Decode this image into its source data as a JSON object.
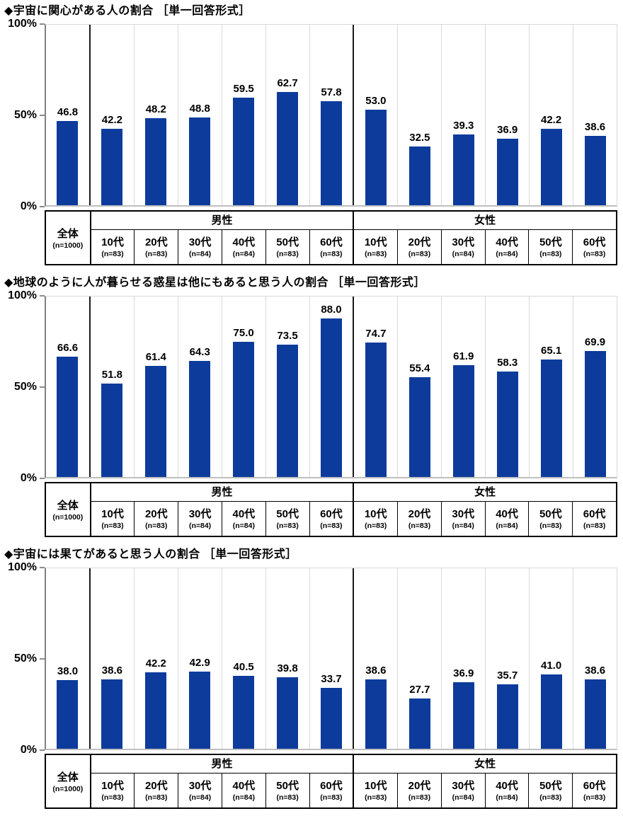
{
  "page": {
    "background": "#ffffff"
  },
  "chart_data": [
    {
      "type": "bar",
      "title": "◆宇宙に関心がある人の割合 ［単一回答形式］",
      "xlabel": "",
      "ylabel": "",
      "ylim": [
        0,
        100
      ],
      "grid": false,
      "legend": "none",
      "bar_color": "#0c3b9c",
      "yticks": [
        {
          "label": "100%",
          "value": 100
        },
        {
          "label": "50%",
          "value": 50
        },
        {
          "label": "0%",
          "value": 0
        }
      ],
      "group_headers": {
        "male": "男性",
        "female": "女性"
      },
      "categories": [
        {
          "label": "全体",
          "n": "(n=1000)",
          "group": "overall"
        },
        {
          "label": "10代",
          "n": "(n=83)",
          "group": "male"
        },
        {
          "label": "20代",
          "n": "(n=83)",
          "group": "male"
        },
        {
          "label": "30代",
          "n": "(n=84)",
          "group": "male"
        },
        {
          "label": "40代",
          "n": "(n=84)",
          "group": "male"
        },
        {
          "label": "50代",
          "n": "(n=83)",
          "group": "male"
        },
        {
          "label": "60代",
          "n": "(n=83)",
          "group": "male"
        },
        {
          "label": "10代",
          "n": "(n=83)",
          "group": "female"
        },
        {
          "label": "20代",
          "n": "(n=83)",
          "group": "female"
        },
        {
          "label": "30代",
          "n": "(n=84)",
          "group": "female"
        },
        {
          "label": "40代",
          "n": "(n=84)",
          "group": "female"
        },
        {
          "label": "50代",
          "n": "(n=83)",
          "group": "female"
        },
        {
          "label": "60代",
          "n": "(n=83)",
          "group": "female"
        }
      ],
      "values": [
        46.8,
        42.2,
        48.2,
        48.8,
        59.5,
        62.7,
        57.8,
        53.0,
        32.5,
        39.3,
        36.9,
        42.2,
        38.6
      ]
    },
    {
      "type": "bar",
      "title": "◆地球のように人が暮らせる惑星は他にもあると思う人の割合 ［単一回答形式］",
      "xlabel": "",
      "ylabel": "",
      "ylim": [
        0,
        100
      ],
      "grid": false,
      "legend": "none",
      "bar_color": "#0c3b9c",
      "yticks": [
        {
          "label": "100%",
          "value": 100
        },
        {
          "label": "50%",
          "value": 50
        },
        {
          "label": "0%",
          "value": 0
        }
      ],
      "group_headers": {
        "male": "男性",
        "female": "女性"
      },
      "categories": [
        {
          "label": "全体",
          "n": "(n=1000)",
          "group": "overall"
        },
        {
          "label": "10代",
          "n": "(n=83)",
          "group": "male"
        },
        {
          "label": "20代",
          "n": "(n=83)",
          "group": "male"
        },
        {
          "label": "30代",
          "n": "(n=84)",
          "group": "male"
        },
        {
          "label": "40代",
          "n": "(n=84)",
          "group": "male"
        },
        {
          "label": "50代",
          "n": "(n=83)",
          "group": "male"
        },
        {
          "label": "60代",
          "n": "(n=83)",
          "group": "male"
        },
        {
          "label": "10代",
          "n": "(n=83)",
          "group": "female"
        },
        {
          "label": "20代",
          "n": "(n=83)",
          "group": "female"
        },
        {
          "label": "30代",
          "n": "(n=84)",
          "group": "female"
        },
        {
          "label": "40代",
          "n": "(n=84)",
          "group": "female"
        },
        {
          "label": "50代",
          "n": "(n=83)",
          "group": "female"
        },
        {
          "label": "60代",
          "n": "(n=83)",
          "group": "female"
        }
      ],
      "values": [
        66.6,
        51.8,
        61.4,
        64.3,
        75.0,
        73.5,
        88.0,
        74.7,
        55.4,
        61.9,
        58.3,
        65.1,
        69.9
      ]
    },
    {
      "type": "bar",
      "title": "◆宇宙には果てがあると思う人の割合 ［単一回答形式］",
      "xlabel": "",
      "ylabel": "",
      "ylim": [
        0,
        100
      ],
      "grid": false,
      "legend": "none",
      "bar_color": "#0c3b9c",
      "yticks": [
        {
          "label": "100%",
          "value": 100
        },
        {
          "label": "50%",
          "value": 50
        },
        {
          "label": "0%",
          "value": 0
        }
      ],
      "group_headers": {
        "male": "男性",
        "female": "女性"
      },
      "categories": [
        {
          "label": "全体",
          "n": "(n=1000)",
          "group": "overall"
        },
        {
          "label": "10代",
          "n": "(n=83)",
          "group": "male"
        },
        {
          "label": "20代",
          "n": "(n=83)",
          "group": "male"
        },
        {
          "label": "30代",
          "n": "(n=84)",
          "group": "male"
        },
        {
          "label": "40代",
          "n": "(n=84)",
          "group": "male"
        },
        {
          "label": "50代",
          "n": "(n=83)",
          "group": "male"
        },
        {
          "label": "60代",
          "n": "(n=83)",
          "group": "male"
        },
        {
          "label": "10代",
          "n": "(n=83)",
          "group": "female"
        },
        {
          "label": "20代",
          "n": "(n=83)",
          "group": "female"
        },
        {
          "label": "30代",
          "n": "(n=84)",
          "group": "female"
        },
        {
          "label": "40代",
          "n": "(n=84)",
          "group": "female"
        },
        {
          "label": "50代",
          "n": "(n=83)",
          "group": "female"
        },
        {
          "label": "60代",
          "n": "(n=83)",
          "group": "female"
        }
      ],
      "values": [
        38.0,
        38.6,
        42.2,
        42.9,
        40.5,
        39.8,
        33.7,
        38.6,
        27.7,
        36.9,
        35.7,
        41.0,
        38.6
      ]
    }
  ]
}
